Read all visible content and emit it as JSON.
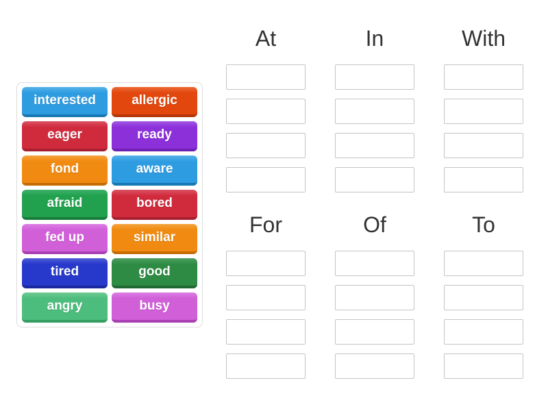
{
  "word_bank": {
    "words": [
      {
        "label": "interested",
        "color": "blue"
      },
      {
        "label": "allergic",
        "color": "vermillion"
      },
      {
        "label": "eager",
        "color": "crimson"
      },
      {
        "label": "ready",
        "color": "purple"
      },
      {
        "label": "fond",
        "color": "orange"
      },
      {
        "label": "aware",
        "color": "blue"
      },
      {
        "label": "afraid",
        "color": "green"
      },
      {
        "label": "bored",
        "color": "crimson"
      },
      {
        "label": "fed up",
        "color": "orchid"
      },
      {
        "label": "similar",
        "color": "orange"
      },
      {
        "label": "tired",
        "color": "royal"
      },
      {
        "label": "good",
        "color": "forest"
      },
      {
        "label": "angry",
        "color": "seagreen"
      },
      {
        "label": "busy",
        "color": "orchid"
      }
    ]
  },
  "palette": {
    "blue": {
      "light": "#56b2e9",
      "main": "#2e9ce1",
      "dark": "#1878b4"
    },
    "vermillion": {
      "light": "#ee6a34",
      "main": "#e2470e",
      "dark": "#b53608"
    },
    "crimson": {
      "light": "#dc5263",
      "main": "#d02b3d",
      "dark": "#a81f30"
    },
    "purple": {
      "light": "#a258e3",
      "main": "#8c30da",
      "dark": "#6f21b3"
    },
    "orange": {
      "light": "#f5a33e",
      "main": "#f18a11",
      "dark": "#c66c04"
    },
    "green": {
      "light": "#3db269",
      "main": "#21a14e",
      "dark": "#177b3a"
    },
    "orchid": {
      "light": "#dd7de4",
      "main": "#d05fd8",
      "dark": "#a83fb2"
    },
    "royal": {
      "light": "#4f5dd8",
      "main": "#2739cb",
      "dark": "#1a28a0"
    },
    "forest": {
      "light": "#4a9e5f",
      "main": "#2e8b44",
      "dark": "#206832"
    },
    "seagreen": {
      "light": "#6fcb95",
      "main": "#4cbd7c",
      "dark": "#379e63"
    }
  },
  "groups": [
    {
      "label": "At",
      "slots": 4
    },
    {
      "label": "In",
      "slots": 4
    },
    {
      "label": "With",
      "slots": 4
    },
    {
      "label": "For",
      "slots": 4
    },
    {
      "label": "Of",
      "slots": 4
    },
    {
      "label": "To",
      "slots": 4
    }
  ],
  "header_text_color": "#333333",
  "slot_border_color": "#c4c4c4"
}
